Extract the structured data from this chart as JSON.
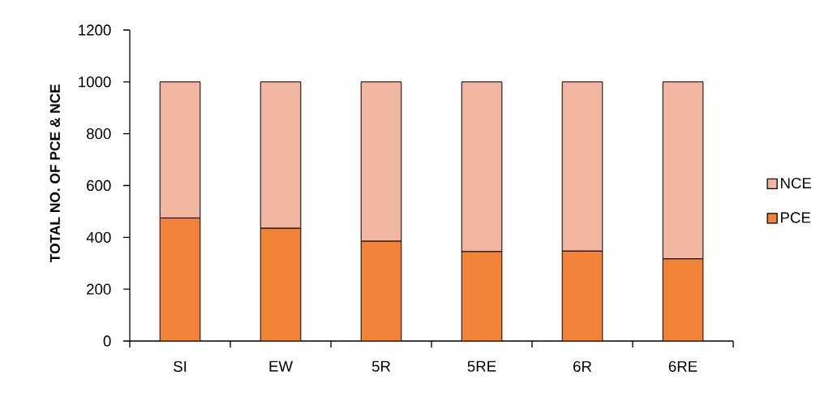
{
  "chart_data": {
    "type": "bar",
    "stacked": true,
    "ylabel": "TOTAL NO. OF PCE & NCE",
    "categories": [
      "SI",
      "EW",
      "5R",
      "5RE",
      "6R",
      "6RE"
    ],
    "series": [
      {
        "name": "PCE",
        "color": "#f28238",
        "values": [
          475,
          435,
          385,
          345,
          347,
          317
        ]
      },
      {
        "name": "NCE",
        "color": "#f0b6a0",
        "values": [
          525,
          565,
          615,
          655,
          653,
          683
        ]
      }
    ],
    "ylim": [
      0,
      1200
    ],
    "yticks": [
      0,
      200,
      400,
      600,
      800,
      1000,
      1200
    ],
    "legend": "right"
  }
}
